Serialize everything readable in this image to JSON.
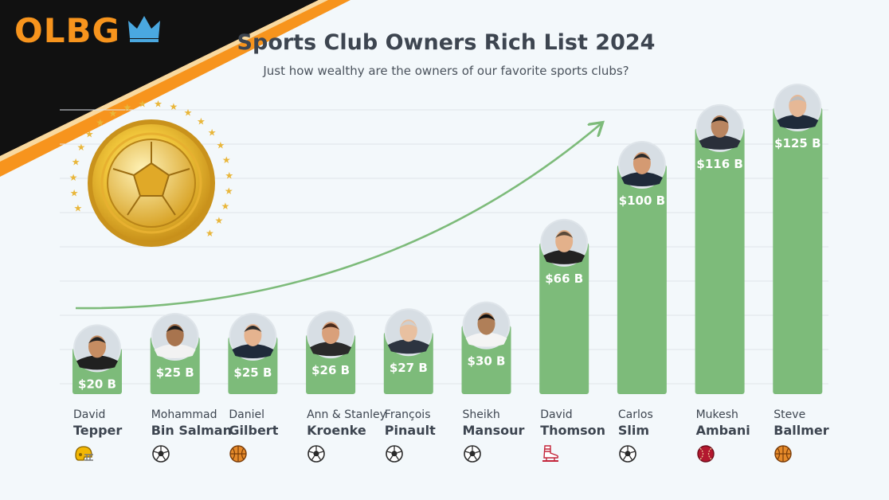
{
  "brand": {
    "logo_text": "OLBG"
  },
  "colors": {
    "bar": "#7dbb7a",
    "arrow": "#7dbb7a",
    "accent": "#f7941d",
    "gold": "#e8b520"
  },
  "chart_data": {
    "type": "bar",
    "title": "Sports Club Owners Rich List 2024",
    "subtitle": "Just how wealthy are the owners of our favorite sports clubs?",
    "xlabel": "",
    "ylabel": "",
    "ylim": [
      0,
      125
    ],
    "grid": true,
    "legend": "none",
    "unit_prefix": "$",
    "unit_suffix": " B",
    "categories": [
      "David Tepper",
      "Mohammad Bin Salman",
      "Daniel Gilbert",
      "Ann & Stanley Kroenke",
      "François Pinault",
      "Sheikh Mansour",
      "David Thomson",
      "Carlos Slim",
      "Mukesh Ambani",
      "Steve Ballmer"
    ],
    "values": [
      20,
      25,
      25,
      26,
      27,
      30,
      66,
      100,
      116,
      125
    ],
    "labels": [
      "$20 B",
      "$25 B",
      "$25 B",
      "$26 B",
      "$27 B",
      "$30 B",
      "$66 B",
      "$100 B",
      "$116 B",
      "$125 B"
    ],
    "owners": [
      {
        "first": "David",
        "last": "Tepper",
        "sport_icon": "american-football-helmet-icon"
      },
      {
        "first": "Mohammad",
        "last": "Bin Salman",
        "sport_icon": "soccer-ball-icon"
      },
      {
        "first": "Daniel",
        "last": "Gilbert",
        "sport_icon": "basketball-icon"
      },
      {
        "first": "Ann & Stanley",
        "last": "Kroenke",
        "sport_icon": "soccer-ball-icon"
      },
      {
        "first": "François",
        "last": "Pinault",
        "sport_icon": "soccer-ball-icon"
      },
      {
        "first": "Sheikh",
        "last": "Mansour",
        "sport_icon": "soccer-ball-icon"
      },
      {
        "first": "David",
        "last": "Thomson",
        "sport_icon": "ice-skate-icon"
      },
      {
        "first": "Carlos",
        "last": "Slim",
        "sport_icon": "soccer-ball-icon"
      },
      {
        "first": "Mukesh",
        "last": "Ambani",
        "sport_icon": "cricket-ball-icon"
      },
      {
        "first": "Steve",
        "last": "Ballmer",
        "sport_icon": "basketball-icon"
      }
    ]
  }
}
